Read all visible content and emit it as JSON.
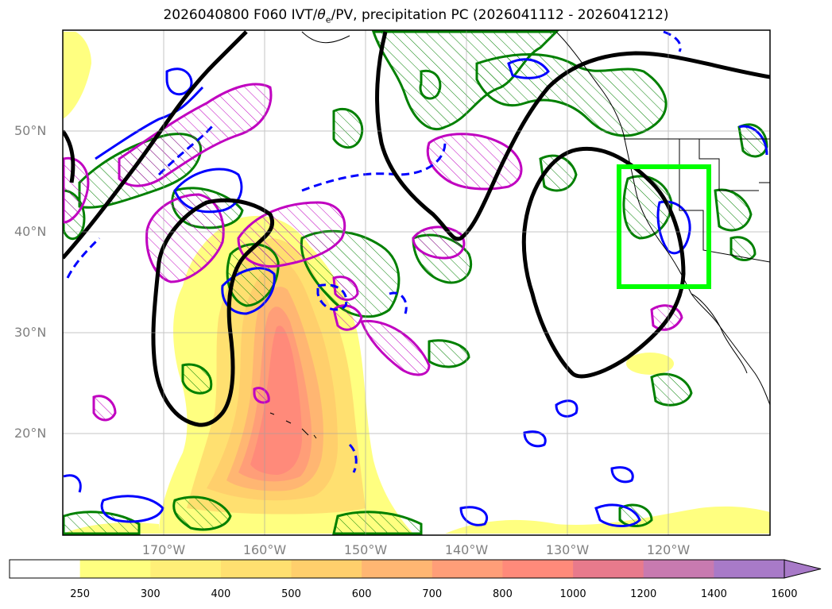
{
  "title_prefix": "2026040800 F060 IVT/",
  "title_theta": "θ",
  "title_theta_sub": "e",
  "title_suffix": "/PV, precipitation PC (2026041112 - 2026041212)",
  "lat_labels": [
    "50°N",
    "40°N",
    "30°N",
    "20°N"
  ],
  "lon_labels": [
    "170°W",
    "160°W",
    "150°W",
    "140°W",
    "130°W",
    "120°W"
  ],
  "colorbar": {
    "ticks": [
      "250",
      "300",
      "400",
      "500",
      "600",
      "700",
      "800",
      "1000",
      "1200",
      "1400",
      "1600"
    ],
    "colors": [
      "#ffffff",
      "#ffff80",
      "#ffef78",
      "#ffe070",
      "#ffcf6c",
      "#ffb672",
      "#ff9e78",
      "#ff8a7a",
      "#e87a8c",
      "#c87ab0",
      "#a87ac8"
    ]
  },
  "colors": {
    "theta_e": "#000000",
    "pv_solid": "#0000ff",
    "pv_dashed": "#0000ff",
    "precip": "#008000",
    "pc": "#c000c0",
    "box": "#00ff00"
  }
}
